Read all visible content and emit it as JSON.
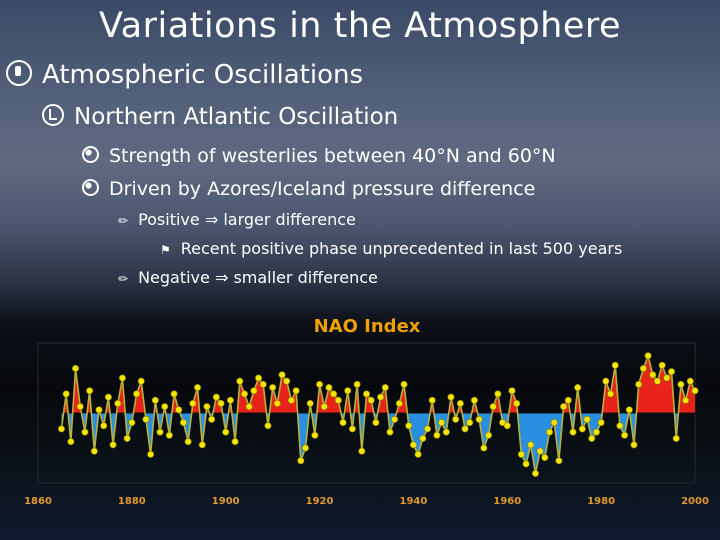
{
  "slide": {
    "title": "Variations in the Atmosphere",
    "bullets": {
      "level1": "Atmospheric Oscillations",
      "level2": "Northern Atlantic Oscillation",
      "level3": [
        "Strength of westerlies between 40°N and 60°N",
        "Driven by Azores/Iceland pressure difference"
      ],
      "positive": "Positive ⇒ larger difference",
      "recent": "Recent positive phase unprecedented in last 500 years",
      "negative": "Negative ⇒ smaller difference"
    },
    "icons": {
      "level1": "globe-icon",
      "level2": "clock-icon",
      "level3": "earth-icon",
      "level4": "pencil-icon",
      "level5": "flag-icon"
    }
  },
  "chart_data": {
    "type": "line",
    "title": "NAO Index",
    "x_ticks": [
      "1860",
      "1880",
      "1900",
      "1920",
      "1940",
      "1960",
      "1980",
      "2000"
    ],
    "xlim": [
      1860,
      2000
    ],
    "ylim": [
      -2.2,
      2.2
    ],
    "positive_fill_color": "#e8231a",
    "negative_fill_color": "#2a8fe0",
    "line_color": "#b8b23c",
    "marker_color": "#f4e600",
    "title_color": "#f0a000",
    "x": [
      1865,
      1866,
      1867,
      1868,
      1869,
      1870,
      1871,
      1872,
      1873,
      1874,
      1875,
      1876,
      1877,
      1878,
      1879,
      1880,
      1881,
      1882,
      1883,
      1884,
      1885,
      1886,
      1887,
      1888,
      1889,
      1890,
      1891,
      1892,
      1893,
      1894,
      1895,
      1896,
      1897,
      1898,
      1899,
      1900,
      1901,
      1902,
      1903,
      1904,
      1905,
      1906,
      1907,
      1908,
      1909,
      1910,
      1911,
      1912,
      1913,
      1914,
      1915,
      1916,
      1917,
      1918,
      1919,
      1920,
      1921,
      1922,
      1923,
      1924,
      1925,
      1926,
      1927,
      1928,
      1929,
      1930,
      1931,
      1932,
      1933,
      1934,
      1935,
      1936,
      1937,
      1938,
      1939,
      1940,
      1941,
      1942,
      1943,
      1944,
      1945,
      1946,
      1947,
      1948,
      1949,
      1950,
      1951,
      1952,
      1953,
      1954,
      1955,
      1956,
      1957,
      1958,
      1959,
      1960,
      1961,
      1962,
      1963,
      1964,
      1965,
      1966,
      1967,
      1968,
      1969,
      1970,
      1971,
      1972,
      1973,
      1974,
      1975,
      1976,
      1977,
      1978,
      1979,
      1980,
      1981,
      1982,
      1983,
      1984,
      1985,
      1986,
      1987,
      1988,
      1989,
      1990,
      1991,
      1992,
      1993,
      1994,
      1995,
      1996,
      1997,
      1998,
      1999,
      2000
    ],
    "y": [
      -0.5,
      0.6,
      -0.9,
      1.4,
      0.2,
      -0.6,
      0.7,
      -1.2,
      0.1,
      -0.4,
      0.5,
      -1.0,
      0.3,
      1.1,
      -0.8,
      -0.3,
      0.6,
      1.0,
      -0.2,
      -1.3,
      0.4,
      -0.6,
      0.2,
      -0.7,
      0.6,
      0.1,
      -0.3,
      -0.9,
      0.3,
      0.8,
      -1.0,
      0.2,
      -0.2,
      0.5,
      0.3,
      -0.6,
      0.4,
      -0.9,
      1.0,
      0.6,
      0.2,
      0.7,
      1.1,
      0.9,
      -0.4,
      0.8,
      0.3,
      1.2,
      1.0,
      0.4,
      0.7,
      -1.5,
      -1.1,
      0.3,
      -0.7,
      0.9,
      0.2,
      0.8,
      0.6,
      0.4,
      -0.3,
      0.7,
      -0.5,
      0.9,
      -1.2,
      0.6,
      0.4,
      -0.3,
      0.5,
      0.8,
      -0.6,
      -0.2,
      0.3,
      0.9,
      -0.4,
      -1.0,
      -1.3,
      -0.8,
      -0.5,
      0.4,
      -0.7,
      -0.3,
      -0.6,
      0.5,
      -0.2,
      0.3,
      -0.5,
      -0.3,
      0.4,
      -0.2,
      -1.1,
      -0.7,
      0.2,
      0.6,
      -0.3,
      -0.4,
      0.7,
      0.3,
      -1.3,
      -1.6,
      -1.0,
      -1.9,
      -1.2,
      -1.4,
      -0.6,
      -0.3,
      -1.5,
      0.2,
      0.4,
      -0.6,
      0.8,
      -0.5,
      -0.2,
      -0.8,
      -0.6,
      -0.3,
      1.0,
      0.6,
      1.5,
      -0.4,
      -0.7,
      0.1,
      -1.0,
      0.9,
      1.4,
      1.8,
      1.2,
      1.0,
      1.5,
      1.1,
      1.3,
      -0.8,
      0.9,
      0.4,
      1.0,
      0.7
    ]
  }
}
